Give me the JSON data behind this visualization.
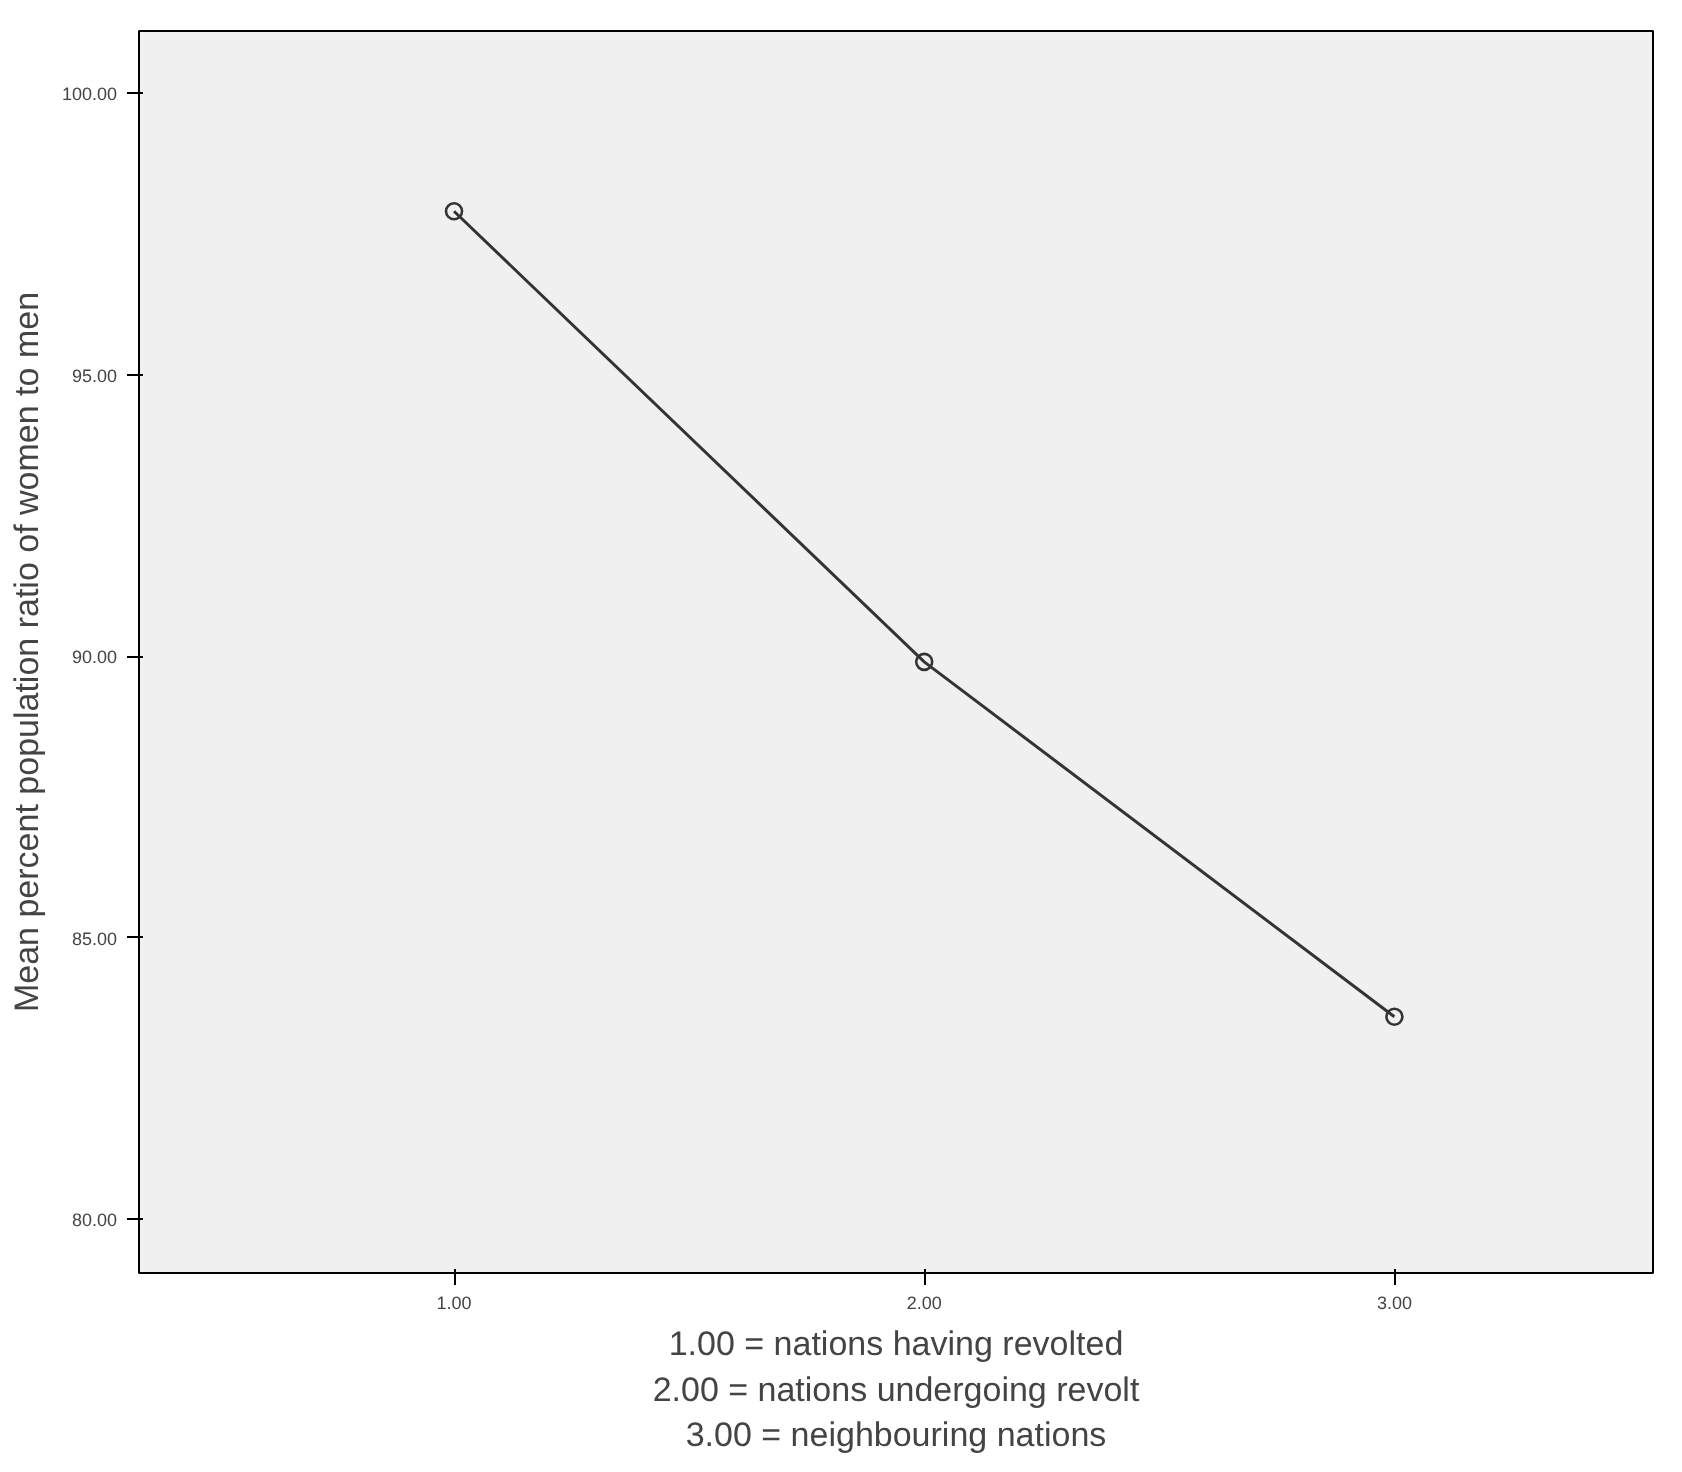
{
  "chart_data": {
    "type": "line",
    "x": [
      1,
      2,
      3
    ],
    "series": [
      {
        "color": "#333333",
        "values": [
          97.9,
          89.9,
          83.6
        ]
      }
    ],
    "xlim": [
      0.33,
      3.55
    ],
    "ylim": [
      79.05,
      101.1
    ],
    "xticks": [
      {
        "value": 1,
        "label": "1.00"
      },
      {
        "value": 2,
        "label": "2.00"
      },
      {
        "value": 3,
        "label": "3.00"
      }
    ],
    "yticks": [
      {
        "value": 80,
        "label": "80.00"
      },
      {
        "value": 85,
        "label": "85.00"
      },
      {
        "value": 90,
        "label": "90.00"
      },
      {
        "value": 95,
        "label": "95.00"
      },
      {
        "value": 100,
        "label": "100.00"
      }
    ],
    "ylabel": "Mean percent population ratio of women to men",
    "xlabel": "1.00 = nations having revolted\n2.00 = nations undergoing revolt\n3.00 = neighbouring nations",
    "marker": "circle",
    "line_style": "solid",
    "grid": false
  }
}
